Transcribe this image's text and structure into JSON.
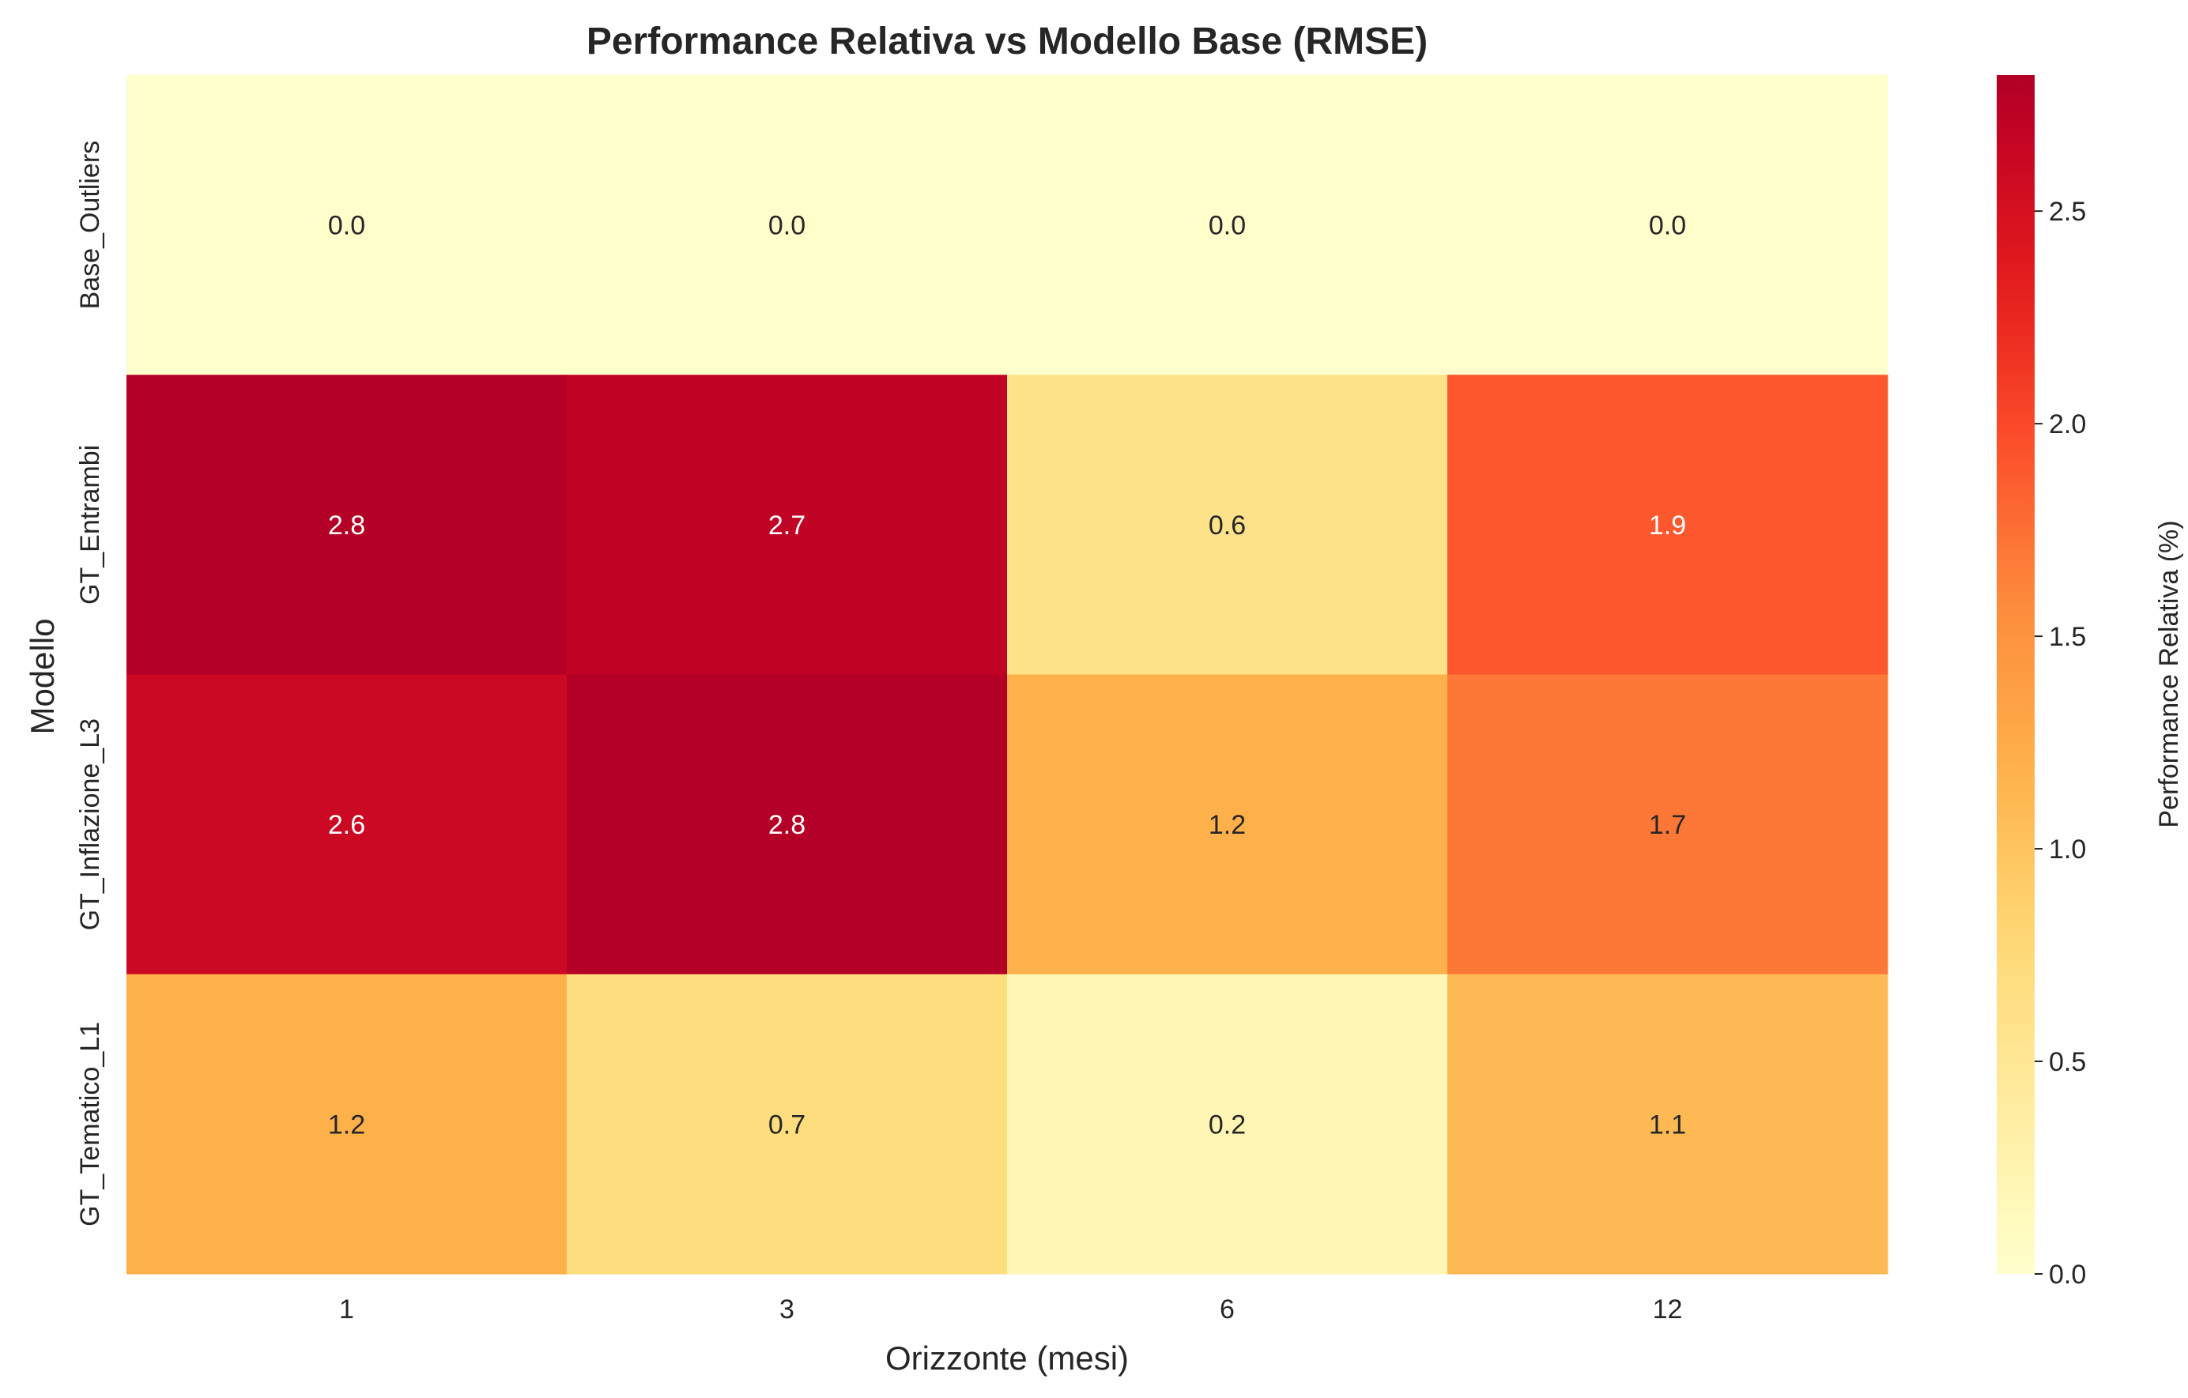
{
  "chart_data": {
    "type": "heatmap",
    "title": "Performance Relativa vs Modello Base (RMSE)",
    "xlabel": "Orizzonte (mesi)",
    "ylabel": "Modello",
    "x_categories": [
      "1",
      "3",
      "6",
      "12"
    ],
    "y_categories": [
      "Base_Outliers",
      "GT_Entrambi",
      "GT_Inflazione_L3",
      "GT_Tematico_L1"
    ],
    "values": [
      [
        0.0,
        0.0,
        0.0,
        0.0
      ],
      [
        2.8,
        2.7,
        0.6,
        1.9
      ],
      [
        2.6,
        2.8,
        1.2,
        1.7
      ],
      [
        1.2,
        0.7,
        0.2,
        1.1
      ]
    ],
    "value_labels": [
      [
        "0.0",
        "0.0",
        "0.0",
        "0.0"
      ],
      [
        "2.8",
        "2.7",
        "0.6",
        "1.9"
      ],
      [
        "2.6",
        "2.8",
        "1.2",
        "1.7"
      ],
      [
        "1.2",
        "0.7",
        "0.2",
        "1.1"
      ]
    ],
    "colormap": "YlOrRd",
    "colorbar": {
      "label": "Performance Relativa (%)",
      "range": [
        0.0,
        2.82
      ],
      "ticks": [
        0.0,
        0.5,
        1.0,
        1.5,
        2.0,
        2.5
      ],
      "tick_labels": [
        "0.0",
        "0.5",
        "1.0",
        "1.5",
        "2.0",
        "2.5"
      ]
    },
    "grid": false
  }
}
